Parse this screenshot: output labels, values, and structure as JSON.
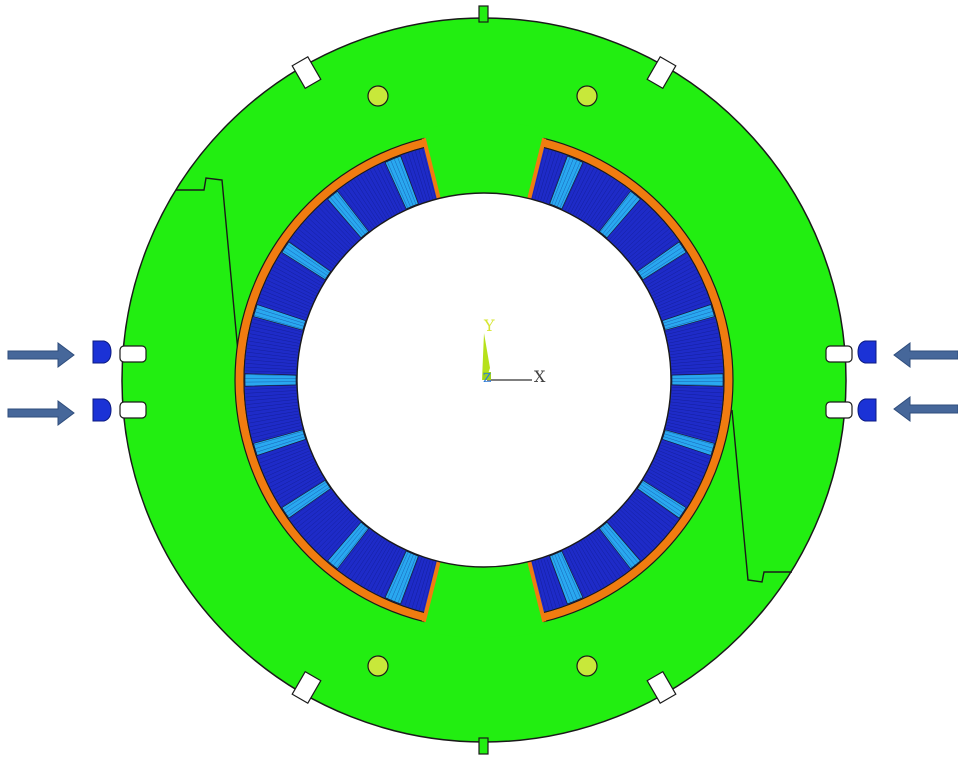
{
  "colors": {
    "background": "#ffffff",
    "yoke": "#22ee11",
    "outline": "#1a1a1a",
    "hole_fill": "#c8e83a",
    "insulation": "#f07c10",
    "coil_dark": "#1e2bc8",
    "coil_light": "#29a8f0",
    "arrow": "#46679a",
    "pad": "#1b32d6",
    "axis_y_label": "#d6e632",
    "axis_x_label": "#404040",
    "axis_triad": "#b6e11a"
  },
  "axes": {
    "y_label": "Y",
    "x_label": "X",
    "z_label": "Z"
  },
  "annotations": {
    "left_arrows": 2,
    "right_arrows": 2,
    "arrow_direction": "toward-center"
  }
}
